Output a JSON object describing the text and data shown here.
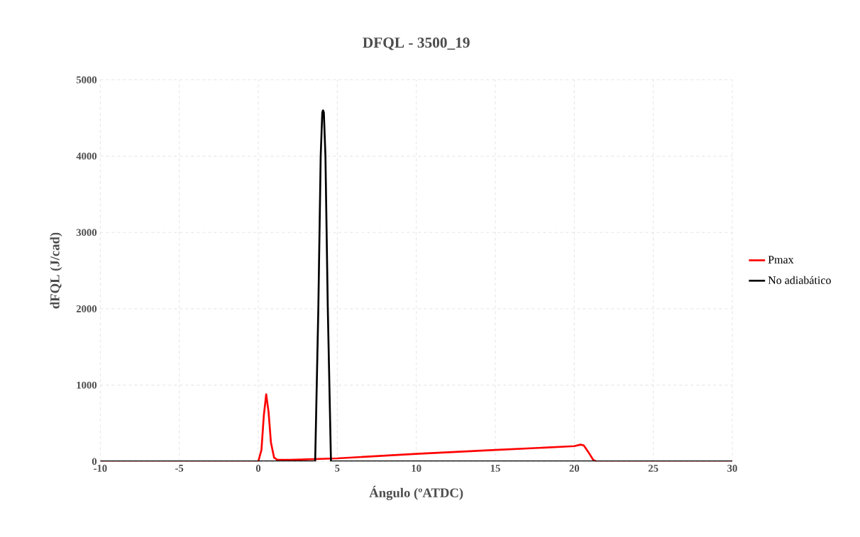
{
  "chart_data": {
    "type": "line",
    "title": "DFQL - 3500_19",
    "xlabel": "Ángulo (ºATDC)",
    "ylabel": "dFQL (J/cad)",
    "xlim": [
      -10,
      30
    ],
    "xticks": [
      -10,
      -5,
      0,
      5,
      10,
      15,
      20,
      25,
      30
    ],
    "ylim": [
      0,
      5000
    ],
    "yticks": [
      0,
      1000,
      2000,
      3000,
      4000,
      5000
    ],
    "grid": true,
    "legend": "right",
    "line_style": "solid",
    "marker": "none",
    "series": [
      {
        "name": "Pmax",
        "color": "#ff0000",
        "x": [
          -10,
          0,
          0.2,
          0.35,
          0.5,
          0.65,
          0.8,
          1.0,
          1.2,
          2,
          5,
          7.5,
          10,
          15,
          20,
          20.4,
          20.6,
          20.9,
          21.2,
          21.4,
          30
        ],
        "values": [
          0,
          0,
          150,
          600,
          880,
          650,
          250,
          50,
          20,
          20,
          40,
          70,
          100,
          150,
          200,
          220,
          210,
          120,
          20,
          0,
          0
        ]
      },
      {
        "name": "No adiabático",
        "color": "#000000",
        "x": [
          -10,
          3.6,
          3.8,
          3.95,
          4.05,
          4.1,
          4.15,
          4.25,
          4.4,
          4.6,
          30
        ],
        "values": [
          0,
          0,
          2000,
          4000,
          4570,
          4600,
          4570,
          4000,
          2000,
          0,
          0
        ]
      }
    ]
  }
}
